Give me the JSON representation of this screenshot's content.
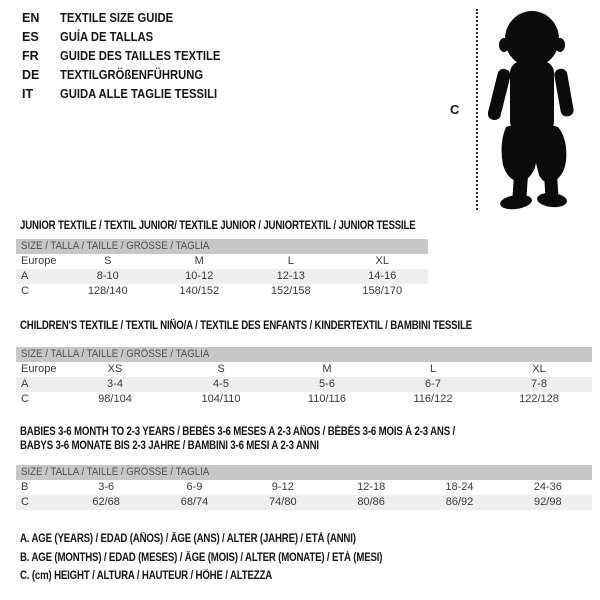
{
  "languages": [
    {
      "code": "EN",
      "title": "TEXTILE SIZE GUIDE"
    },
    {
      "code": "ES",
      "title": "GUÍA DE TALLAS"
    },
    {
      "code": "FR",
      "title": "GUIDE DES TAILLES TEXTILE"
    },
    {
      "code": "DE",
      "title": "TEXTILGRÖßENFÜHRUNG"
    },
    {
      "code": "IT",
      "title": "GUIDA ALLE TAGLIE TESSILI"
    }
  ],
  "figure": {
    "height_label": "C"
  },
  "size_header": "SIZE / TALLA / TAILLE / GRÖSSE / TAGLIA",
  "tables": [
    {
      "title": "JUNIOR TEXTILE / TEXTIL JUNIOR/ TEXTILE JUNIOR / JUNIORTEXTIL / JUNIOR TESSILE",
      "rows": [
        {
          "label": "Europe",
          "values": [
            "S",
            "M",
            "L",
            "XL"
          ],
          "shaded": false
        },
        {
          "label": "A",
          "values": [
            "8-10",
            "10-12",
            "12-13",
            "14-16"
          ],
          "shaded": true
        },
        {
          "label": "C",
          "values": [
            "128/140",
            "140/152",
            "152/158",
            "158/170"
          ],
          "shaded": false
        }
      ]
    },
    {
      "title": "CHILDREN'S TEXTILE / TEXTIL NIÑO/A / TEXTILE DES ENFANTS / KINDERTEXTIL / BAMBINI TESSILE",
      "rows": [
        {
          "label": "Europe",
          "values": [
            "XS",
            "S",
            "M",
            "L",
            "XL"
          ],
          "shaded": false
        },
        {
          "label": "A",
          "values": [
            "3-4",
            "4-5",
            "5-6",
            "6-7",
            "7-8"
          ],
          "shaded": true
        },
        {
          "label": "C",
          "values": [
            "98/104",
            "104/110",
            "110/116",
            "116/122",
            "122/128"
          ],
          "shaded": false
        }
      ]
    },
    {
      "title": "BABIES 3-6 MONTH TO 2-3 YEARS / BEBÉS 3-6 MESES A 2-3 AÑOS / BÉBÉS 3-6 MOIS À 2-3 ANS /",
      "title2": "BABYS 3-6 MONATE BIS 2-3 JAHRE / BAMBINI 3-6 MESI A 2-3 ANNI",
      "rows": [
        {
          "label": "B",
          "values": [
            "3-6",
            "6-9",
            "9-12",
            "12-18",
            "18-24",
            "24-36"
          ],
          "shaded": false
        },
        {
          "label": "C",
          "values": [
            "62/68",
            "68/74",
            "74/80",
            "80/86",
            "86/92",
            "92/98"
          ],
          "shaded": true
        }
      ]
    }
  ],
  "legend": [
    "A. AGE (YEARS) / EDAD (AÑOS) / ÂGE (ANS) / ALTER (JAHRE) / ETÀ (ANNI)",
    "B. AGE (MONTHS) / EDAD (MESES) / ÂGE (MOIS) / ALTER (MONATE) / ETÀ (MESI)",
    "C. (cm) HEIGHT / ALTURA / HAUTEUR / HÖHE / ALTEZZA"
  ],
  "colors": {
    "header_bar": "#c7c7c7",
    "shaded_row": "#efefef",
    "table_text": "#3a3a3a",
    "title_text": "#141414"
  }
}
